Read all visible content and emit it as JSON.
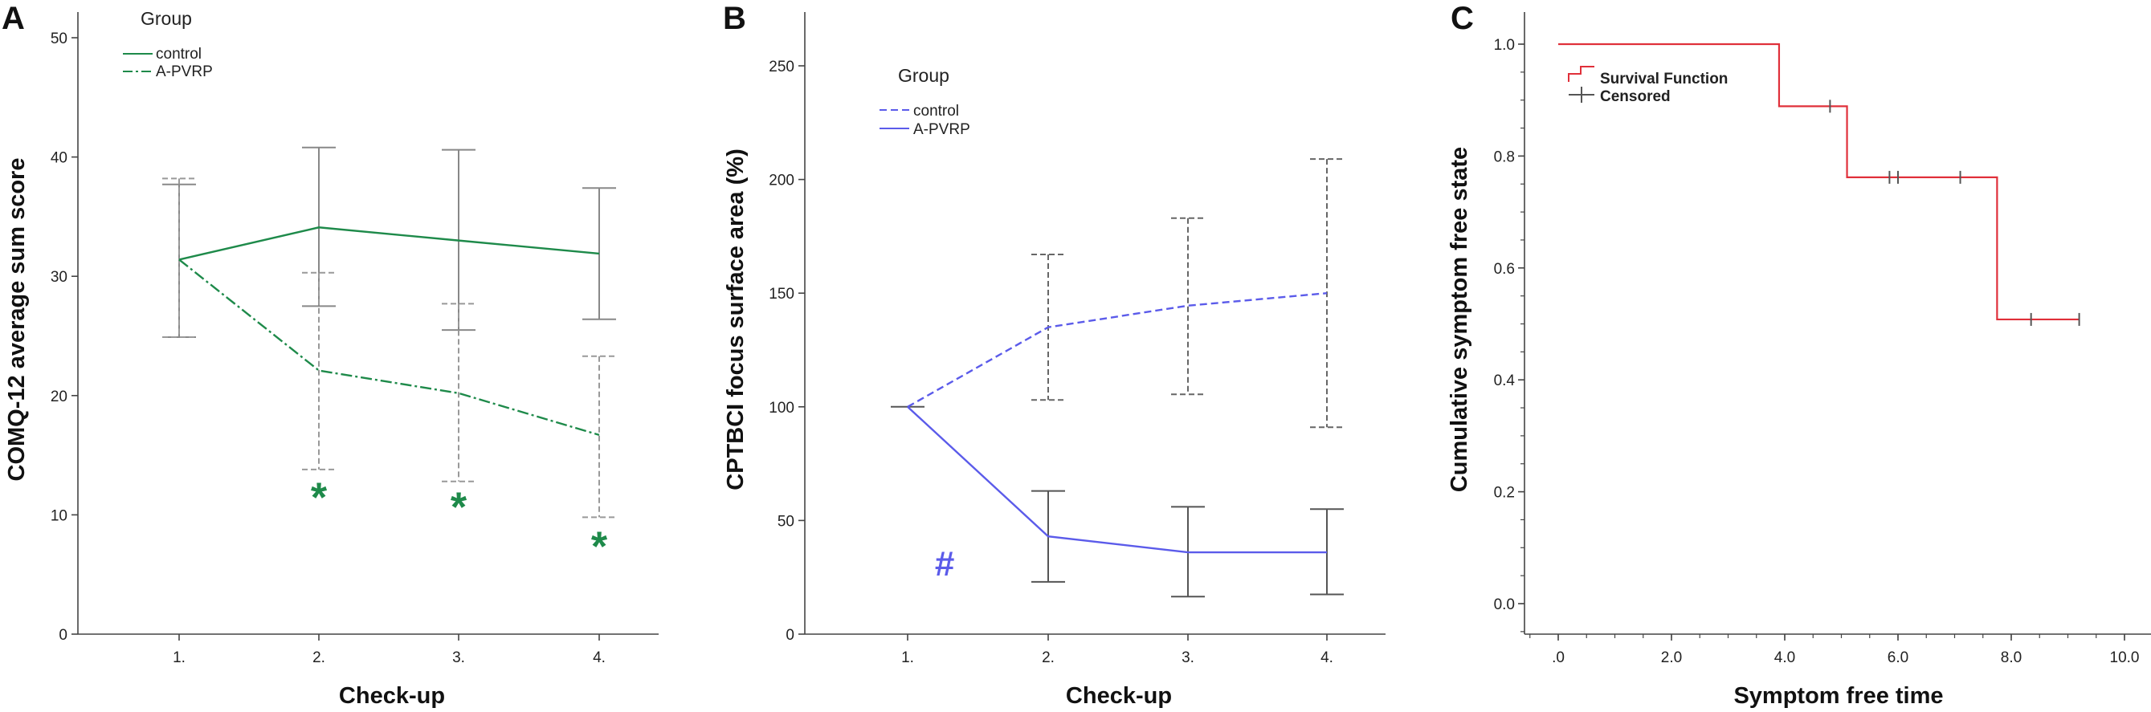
{
  "chart_data": [
    {
      "panel": "A",
      "type": "line",
      "xlabel": "Check-up",
      "ylabel": "COMQ-12 average sum score",
      "categories": [
        "1.",
        "2.",
        "3.",
        "4."
      ],
      "ylim": [
        0,
        50
      ],
      "yticks": [
        0,
        10,
        20,
        30,
        40,
        50
      ],
      "legend": {
        "title": "Group",
        "position": "top-left"
      },
      "series": [
        {
          "name": "control",
          "style": "solid",
          "color": "#1e8a4a",
          "values": [
            31.4,
            34.1,
            33.0,
            31.9
          ],
          "err_low": [
            24.9,
            27.5,
            25.5,
            26.4
          ],
          "err_high": [
            37.7,
            40.8,
            40.6,
            37.4
          ],
          "err_style": "solid",
          "err_color": "#888888"
        },
        {
          "name": "A-PVRP",
          "style": "dashdot",
          "color": "#1e8a4a",
          "values": [
            31.4,
            22.1,
            20.2,
            16.7
          ],
          "err_low": [
            24.9,
            13.8,
            12.8,
            9.8
          ],
          "err_high": [
            38.2,
            30.3,
            27.7,
            23.3
          ],
          "err_style": "dashed",
          "err_color": "#999999"
        }
      ],
      "annotations": [
        {
          "text": "*",
          "category": "2.",
          "y": 11.6,
          "color": "#1e8a4a"
        },
        {
          "text": "*",
          "category": "3.",
          "y": 10.8,
          "color": "#1e8a4a"
        },
        {
          "text": "*",
          "category": "4.",
          "y": 7.5,
          "color": "#1e8a4a"
        }
      ]
    },
    {
      "panel": "B",
      "type": "line",
      "xlabel": "Check-up",
      "ylabel": "CPTBCI focus surface area (%)",
      "categories": [
        "1.",
        "2.",
        "3.",
        "4."
      ],
      "ylim": [
        0,
        260
      ],
      "yticks": [
        0,
        50,
        100,
        150,
        200,
        250
      ],
      "legend": {
        "title": "Group",
        "position": "top-left"
      },
      "series": [
        {
          "name": "control",
          "style": "dashed",
          "color": "#5b5bea",
          "values": [
            100,
            135,
            144.5,
            150
          ],
          "err_low": [
            100,
            103,
            105.5,
            91
          ],
          "err_high": [
            100,
            167,
            183,
            209
          ],
          "err_style": "dashed",
          "err_color": "#666666"
        },
        {
          "name": "A-PVRP",
          "style": "solid",
          "color": "#5b5bea",
          "values": [
            100,
            43,
            36,
            36
          ],
          "err_low": [
            100,
            23,
            16.5,
            17.5
          ],
          "err_high": [
            100,
            63,
            56,
            55
          ],
          "err_style": "solid",
          "err_color": "#555555"
        }
      ],
      "annotations": [
        {
          "text": "#",
          "category": "1.",
          "x_offset": 0.26,
          "y": 30,
          "color": "#5b5bea"
        }
      ]
    },
    {
      "panel": "C",
      "type": "line",
      "subtype": "kaplan-meier",
      "xlabel": "Symptom free time",
      "ylabel": "Cumulative symptom free state",
      "xlim": [
        -0.6,
        10.4
      ],
      "ylim": [
        -0.07,
        1.05
      ],
      "xticks": [
        0,
        2,
        4,
        6,
        8,
        10
      ],
      "xtick_labels": [
        ".0",
        "2.0",
        "4.0",
        "6.0",
        "8.0",
        "10.0"
      ],
      "yticks": [
        0,
        0.2,
        0.4,
        0.6,
        0.8,
        1.0
      ],
      "ytick_labels": [
        "0.0",
        "0.2",
        "0.4",
        "0.6",
        "0.8",
        "1.0"
      ],
      "legend": {
        "position": "top-left",
        "entries": [
          "Survival Function",
          "Censored"
        ]
      },
      "step_function": {
        "name": "Survival Function",
        "color": "#e0303a",
        "x": [
          0,
          3.9,
          5.1,
          7.75,
          9.2
        ],
        "y": [
          1.0,
          0.889,
          0.762,
          0.508,
          0.508
        ]
      },
      "censored": {
        "name": "Censored",
        "color": "#555555",
        "x": [
          4.8,
          5.85,
          6.0,
          7.1,
          8.35,
          9.2
        ],
        "y": [
          0.889,
          0.762,
          0.762,
          0.762,
          0.508,
          0.508
        ]
      }
    }
  ]
}
